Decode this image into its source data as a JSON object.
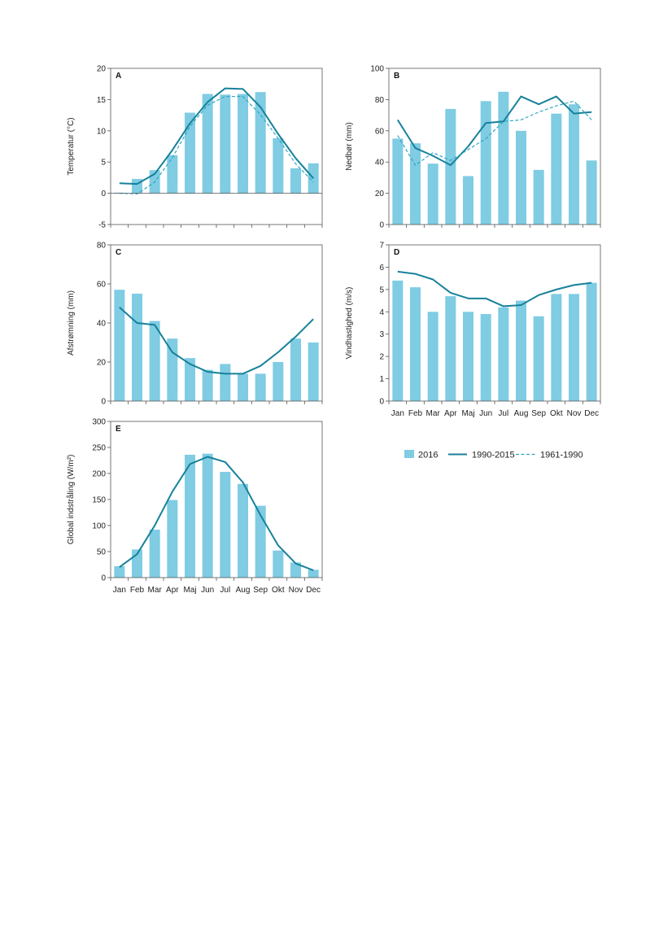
{
  "colors": {
    "bar": "#7fcce3",
    "line_1990_2015": "#17819a",
    "line_1961_1990": "#31a6c2",
    "frame": "#555555"
  },
  "legend": {
    "bar_2016": "2016",
    "line_1990_2015": "1990-2015",
    "line_1961_1990": "1961-1990"
  },
  "chart_data": [
    {
      "panel": "A",
      "type": "bar",
      "ylabel": "Temperatur (°C)",
      "ylim": [
        -5,
        20
      ],
      "yticks": [
        "-5",
        "0",
        "5",
        "10",
        "15",
        "20"
      ],
      "categories": [
        "Jan",
        "Feb",
        "Mar",
        "Apr",
        "Maj",
        "Jun",
        "Jul",
        "Aug",
        "Sep",
        "Okt",
        "Nov",
        "Dec"
      ],
      "show_xticklabels": false,
      "series": [
        {
          "name": "2016",
          "kind": "bar",
          "values": [
            0.1,
            2.3,
            3.7,
            6.1,
            12.9,
            15.9,
            15.8,
            15.9,
            16.2,
            8.8,
            4.0,
            4.8
          ]
        },
        {
          "name": "1990-2015",
          "kind": "line",
          "values": [
            1.6,
            1.5,
            3.1,
            6.9,
            11.2,
            14.6,
            16.8,
            16.7,
            13.8,
            9.5,
            5.6,
            2.4
          ]
        },
        {
          "name": "1961-1990",
          "kind": "dashed",
          "values": [
            0.0,
            -0.1,
            1.8,
            5.7,
            10.7,
            14.1,
            15.5,
            15.5,
            12.6,
            8.8,
            4.7,
            1.8
          ]
        }
      ]
    },
    {
      "panel": "B",
      "type": "bar",
      "ylabel": "Nedbør (mm)",
      "ylim": [
        0,
        100
      ],
      "yticks": [
        "0",
        "20",
        "40",
        "60",
        "80",
        "100"
      ],
      "categories": [
        "Jan",
        "Feb",
        "Mar",
        "Apr",
        "Maj",
        "Jun",
        "Jul",
        "Aug",
        "Sep",
        "Okt",
        "Nov",
        "Dec"
      ],
      "show_xticklabels": false,
      "series": [
        {
          "name": "2016",
          "kind": "bar",
          "values": [
            55,
            52,
            39,
            74,
            31,
            79,
            85,
            60,
            35,
            71,
            77,
            41
          ]
        },
        {
          "name": "1990-2015",
          "kind": "line",
          "values": [
            67,
            49,
            44,
            38,
            50,
            65,
            66,
            82,
            77,
            82,
            71,
            72
          ]
        },
        {
          "name": "1961-1990",
          "kind": "dashed",
          "values": [
            57,
            38,
            46,
            41,
            48,
            55,
            66,
            67,
            72,
            76,
            79,
            67
          ]
        }
      ]
    },
    {
      "panel": "C",
      "type": "bar",
      "ylabel": "Afstrømning (mm)",
      "ylim": [
        0,
        80
      ],
      "yticks": [
        "0",
        "20",
        "40",
        "60",
        "80"
      ],
      "categories": [
        "Jan",
        "Feb",
        "Mar",
        "Apr",
        "Maj",
        "Jun",
        "Jul",
        "Aug",
        "Sep",
        "Okt",
        "Nov",
        "Dec"
      ],
      "show_xticklabels": false,
      "series": [
        {
          "name": "2016",
          "kind": "bar",
          "values": [
            57,
            55,
            41,
            32,
            22,
            16,
            19,
            14,
            14,
            20,
            32,
            30
          ]
        },
        {
          "name": "1990-2015",
          "kind": "line",
          "values": [
            48,
            40,
            39,
            25,
            19,
            15,
            14,
            14,
            18,
            25,
            33,
            42
          ]
        }
      ]
    },
    {
      "panel": "D",
      "type": "bar",
      "ylabel": "Vindhastighed (m/s)",
      "ylim": [
        0,
        7
      ],
      "yticks": [
        "0",
        "1",
        "2",
        "3",
        "4",
        "5",
        "6",
        "7"
      ],
      "categories": [
        "Jan",
        "Feb",
        "Mar",
        "Apr",
        "Maj",
        "Jun",
        "Jul",
        "Aug",
        "Sep",
        "Okt",
        "Nov",
        "Dec"
      ],
      "show_xticklabels": true,
      "series": [
        {
          "name": "2016",
          "kind": "bar",
          "values": [
            5.4,
            5.1,
            4.0,
            4.7,
            4.0,
            3.9,
            4.2,
            4.5,
            3.8,
            4.8,
            4.8,
            5.3
          ]
        },
        {
          "name": "1990-2015",
          "kind": "line",
          "values": [
            5.8,
            5.7,
            5.45,
            4.85,
            4.6,
            4.6,
            4.25,
            4.3,
            4.75,
            5.0,
            5.2,
            5.3
          ]
        }
      ]
    },
    {
      "panel": "E",
      "type": "bar",
      "ylabel": "Global indstråling (W/m²)",
      "ylim": [
        0,
        300
      ],
      "yticks": [
        "0",
        "50",
        "100",
        "150",
        "200",
        "250",
        "300"
      ],
      "categories": [
        "Jan",
        "Feb",
        "Mar",
        "Apr",
        "Maj",
        "Jun",
        "Jul",
        "Aug",
        "Sep",
        "Okt",
        "Nov",
        "Dec"
      ],
      "show_xticklabels": true,
      "series": [
        {
          "name": "2016",
          "kind": "bar",
          "values": [
            22,
            54,
            92,
            149,
            236,
            238,
            203,
            180,
            138,
            52,
            29,
            15
          ]
        },
        {
          "name": "1990-2015",
          "kind": "line",
          "values": [
            20,
            45,
            100,
            165,
            218,
            232,
            222,
            183,
            120,
            62,
            27,
            14
          ]
        }
      ]
    }
  ]
}
